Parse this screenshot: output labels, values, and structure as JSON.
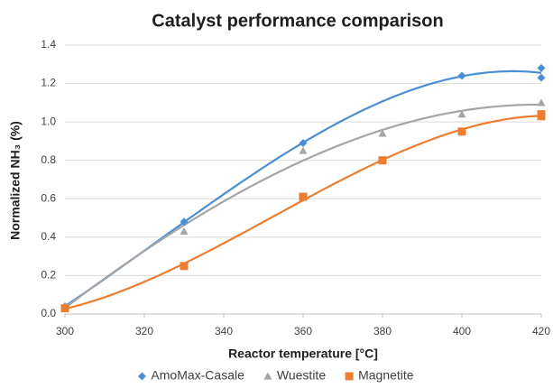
{
  "chart_data": {
    "type": "scatter",
    "title": "Catalyst performance comparison",
    "xlabel": "Reactor temperature [°C]",
    "ylabel": "Normalized NH₃ (%)",
    "xlim": [
      300,
      420
    ],
    "xticks": [
      300,
      320,
      340,
      360,
      380,
      400,
      420
    ],
    "ylim": [
      0,
      1.4
    ],
    "yticks": [
      {
        "value": 0,
        "label": "0.0"
      },
      0.2,
      0.4,
      0.6,
      0.8,
      {
        "value": 1,
        "label": "1.0"
      },
      1.2,
      1.4
    ],
    "grid": true,
    "legend": "bottom",
    "trendline": "polynomial",
    "series": [
      {
        "name": "AmoMax-Casale",
        "color": "#4a8fd4",
        "marker": "diamond",
        "x": [
          300,
          330,
          360,
          400,
          420,
          420
        ],
        "values": [
          0.04,
          0.48,
          0.89,
          1.24,
          1.28,
          1.23
        ]
      },
      {
        "name": "Wuestite",
        "color": "#a5a5a5",
        "marker": "triangle",
        "x": [
          300,
          330,
          360,
          380,
          400,
          420
        ],
        "values": [
          0.04,
          0.43,
          0.85,
          0.94,
          1.04,
          1.1
        ]
      },
      {
        "name": "Magnetite",
        "color": "#ed7d31",
        "marker": "square",
        "x": [
          300,
          330,
          360,
          380,
          400,
          420,
          420
        ],
        "values": [
          0.03,
          0.25,
          0.61,
          0.8,
          0.95,
          1.03,
          1.04
        ]
      }
    ]
  }
}
